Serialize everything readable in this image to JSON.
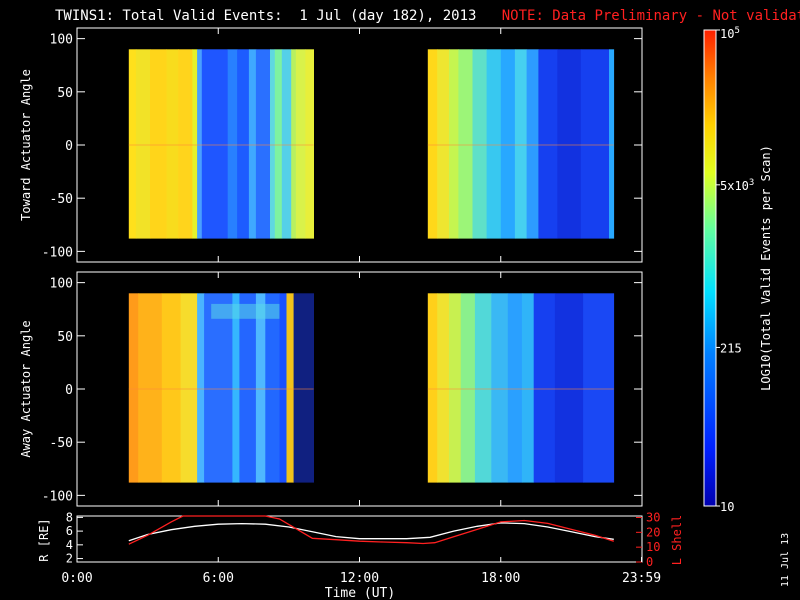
{
  "header": {
    "title": "TWINS1: Total Valid Events:  1 Jul (day 182), 2013",
    "note": "NOTE: Data Preliminary - Not validated"
  },
  "stamp": "11 Jul 13",
  "chart_data": [
    {
      "type": "heatmap",
      "name": "toward-panel",
      "ylabel": "Toward Actuator Angle",
      "ylim": [
        -110,
        110
      ],
      "yticks": [
        100,
        50,
        0,
        -50,
        -100
      ],
      "xlim": [
        0,
        24
      ],
      "blocks": [
        {
          "x": [
            2.2,
            10.05
          ],
          "y": [
            -88,
            90
          ]
        },
        {
          "x": [
            14.9,
            22.8
          ],
          "y": [
            -88,
            90
          ]
        }
      ],
      "stripes": [
        [
          2.2,
          2.5,
          "#ffe01c"
        ],
        [
          2.5,
          3.1,
          "#f2e227"
        ],
        [
          3.1,
          3.8,
          "#ffd51a"
        ],
        [
          3.8,
          4.3,
          "#f8dc1d"
        ],
        [
          4.3,
          4.9,
          "#ffd41c"
        ],
        [
          4.9,
          5.1,
          "#e5f22c"
        ],
        [
          5.1,
          5.3,
          "#4aa0ff"
        ],
        [
          5.3,
          6.4,
          "#1f56ff"
        ],
        [
          6.4,
          6.8,
          "#2880ff"
        ],
        [
          6.8,
          7.3,
          "#1d5cff"
        ],
        [
          7.3,
          7.6,
          "#3fa8ff"
        ],
        [
          7.6,
          8.2,
          "#2a70ff"
        ],
        [
          8.2,
          8.4,
          "#5fd8e0"
        ],
        [
          8.4,
          8.7,
          "#7ef2a0"
        ],
        [
          8.7,
          9.1,
          "#55d0e8"
        ],
        [
          9.1,
          9.3,
          "#b8f060"
        ],
        [
          9.3,
          9.7,
          "#d9f24a"
        ],
        [
          9.7,
          10.05,
          "#e8ef3a"
        ],
        [
          14.9,
          15.3,
          "#ffd81a"
        ],
        [
          15.3,
          15.8,
          "#eee630"
        ],
        [
          15.8,
          16.2,
          "#c5f550"
        ],
        [
          16.2,
          16.8,
          "#9cf578"
        ],
        [
          16.8,
          17.4,
          "#5fe0c8"
        ],
        [
          17.4,
          18.0,
          "#38c8f0"
        ],
        [
          18.0,
          18.6,
          "#28a8ff"
        ],
        [
          18.6,
          19.1,
          "#46d0f0"
        ],
        [
          19.1,
          19.6,
          "#2d9cff"
        ],
        [
          19.6,
          20.4,
          "#1640f0"
        ],
        [
          20.4,
          21.4,
          "#1232e0"
        ],
        [
          21.4,
          22.6,
          "#1640f0"
        ],
        [
          22.6,
          22.8,
          "#28a8ff"
        ]
      ]
    },
    {
      "type": "heatmap",
      "name": "away-panel",
      "ylabel": "Away Actuator Angle",
      "ylim": [
        -110,
        110
      ],
      "yticks": [
        100,
        50,
        0,
        -50,
        -100
      ],
      "xlim": [
        0,
        24
      ],
      "blocks": [
        {
          "x": [
            2.2,
            10.05
          ],
          "y": [
            -88,
            90
          ]
        },
        {
          "x": [
            14.9,
            22.8
          ],
          "y": [
            -88,
            90
          ]
        }
      ],
      "stripes": [
        [
          2.2,
          2.6,
          "#ff9b1a"
        ],
        [
          2.6,
          3.6,
          "#ffb21a"
        ],
        [
          3.6,
          4.4,
          "#ffc81a"
        ],
        [
          4.4,
          5.1,
          "#f6dc2c"
        ],
        [
          5.1,
          5.4,
          "#4ab4ff"
        ],
        [
          5.4,
          6.6,
          "#2a6eff"
        ],
        [
          6.6,
          6.9,
          "#35b6ff"
        ],
        [
          6.9,
          7.6,
          "#2466ff"
        ],
        [
          7.6,
          8.0,
          "#4fb8ff"
        ],
        [
          8.0,
          8.6,
          "#2268ff"
        ],
        [
          8.6,
          8.9,
          "#1a50ff"
        ],
        [
          8.9,
          9.2,
          "#f2c21a"
        ],
        [
          9.2,
          10.05,
          "#102080"
        ],
        [
          14.9,
          15.3,
          "#ffd01a"
        ],
        [
          15.3,
          15.8,
          "#f0e230"
        ],
        [
          15.8,
          16.3,
          "#c8f050"
        ],
        [
          16.3,
          16.9,
          "#8af08c"
        ],
        [
          16.9,
          17.6,
          "#52d8d8"
        ],
        [
          17.6,
          18.3,
          "#3ab8f4"
        ],
        [
          18.3,
          18.9,
          "#2aa0ff"
        ],
        [
          18.9,
          19.4,
          "#30b4f8"
        ],
        [
          19.4,
          20.3,
          "#1640f0"
        ],
        [
          20.3,
          21.5,
          "#1232e0"
        ],
        [
          21.5,
          22.8,
          "#1a48f4"
        ]
      ]
    },
    {
      "type": "line",
      "name": "orbit-panel",
      "ylabel_left": "R [RE]",
      "ylabel_right": "L Shell",
      "xlabel": "Time (UT)",
      "xticks": [
        "0:00",
        "6:00",
        "12:00",
        "18:00",
        "23:59"
      ],
      "xtick_values": [
        0,
        6,
        12,
        18,
        23.98
      ],
      "xlim": [
        0,
        24
      ],
      "ylim_left": [
        1.5,
        8.2
      ],
      "yticks_left": [
        2,
        4,
        6,
        8
      ],
      "ylim_right": [
        0,
        31
      ],
      "yticks_right": [
        0,
        10,
        20,
        30
      ],
      "series": [
        {
          "axis": "left",
          "color": "#ffffff",
          "x": [
            2.2,
            3.0,
            4.0,
            5.0,
            6.0,
            7.0,
            8.0,
            9.0,
            10.0,
            11.0,
            12.0,
            13.0,
            14.0,
            15.0,
            16.0,
            17.0,
            18.0,
            19.0,
            20.0,
            21.0,
            22.0,
            22.8
          ],
          "y": [
            4.6,
            5.5,
            6.2,
            6.7,
            7.0,
            7.1,
            7.0,
            6.6,
            5.9,
            5.2,
            4.9,
            4.9,
            4.9,
            5.1,
            6.0,
            6.7,
            7.2,
            7.1,
            6.6,
            5.9,
            5.2,
            4.8
          ]
        },
        {
          "axis": "right",
          "color": "#ff2020",
          "x": [
            2.2,
            3.0,
            4.0,
            4.5,
            8.0,
            8.6,
            10.0,
            11.0,
            12.0,
            13.0,
            14.0,
            14.7,
            15.2,
            16.0,
            17.0,
            18.0,
            19.0,
            20.0,
            21.0,
            22.0,
            22.8
          ],
          "y": [
            12,
            18,
            27,
            32,
            32,
            29,
            16,
            15,
            14,
            13.5,
            13,
            12.5,
            13,
            17,
            22,
            27,
            28,
            26,
            22,
            18,
            14
          ]
        }
      ]
    }
  ],
  "colorbar": {
    "label": "LOG10(Total Valid Events per Scan)",
    "ticks": [
      {
        "value": 10,
        "label": "10"
      },
      {
        "value": 215,
        "label": "215"
      },
      {
        "value": 5000,
        "label": "5x10^3"
      },
      {
        "value": 100000,
        "label": "10^5"
      }
    ],
    "range": [
      10,
      100000
    ],
    "colors": [
      "#0000b0",
      "#0020ff",
      "#0080ff",
      "#00e0ff",
      "#60ffa0",
      "#e0ff20",
      "#ffd000",
      "#ff8000",
      "#ff2000"
    ]
  }
}
